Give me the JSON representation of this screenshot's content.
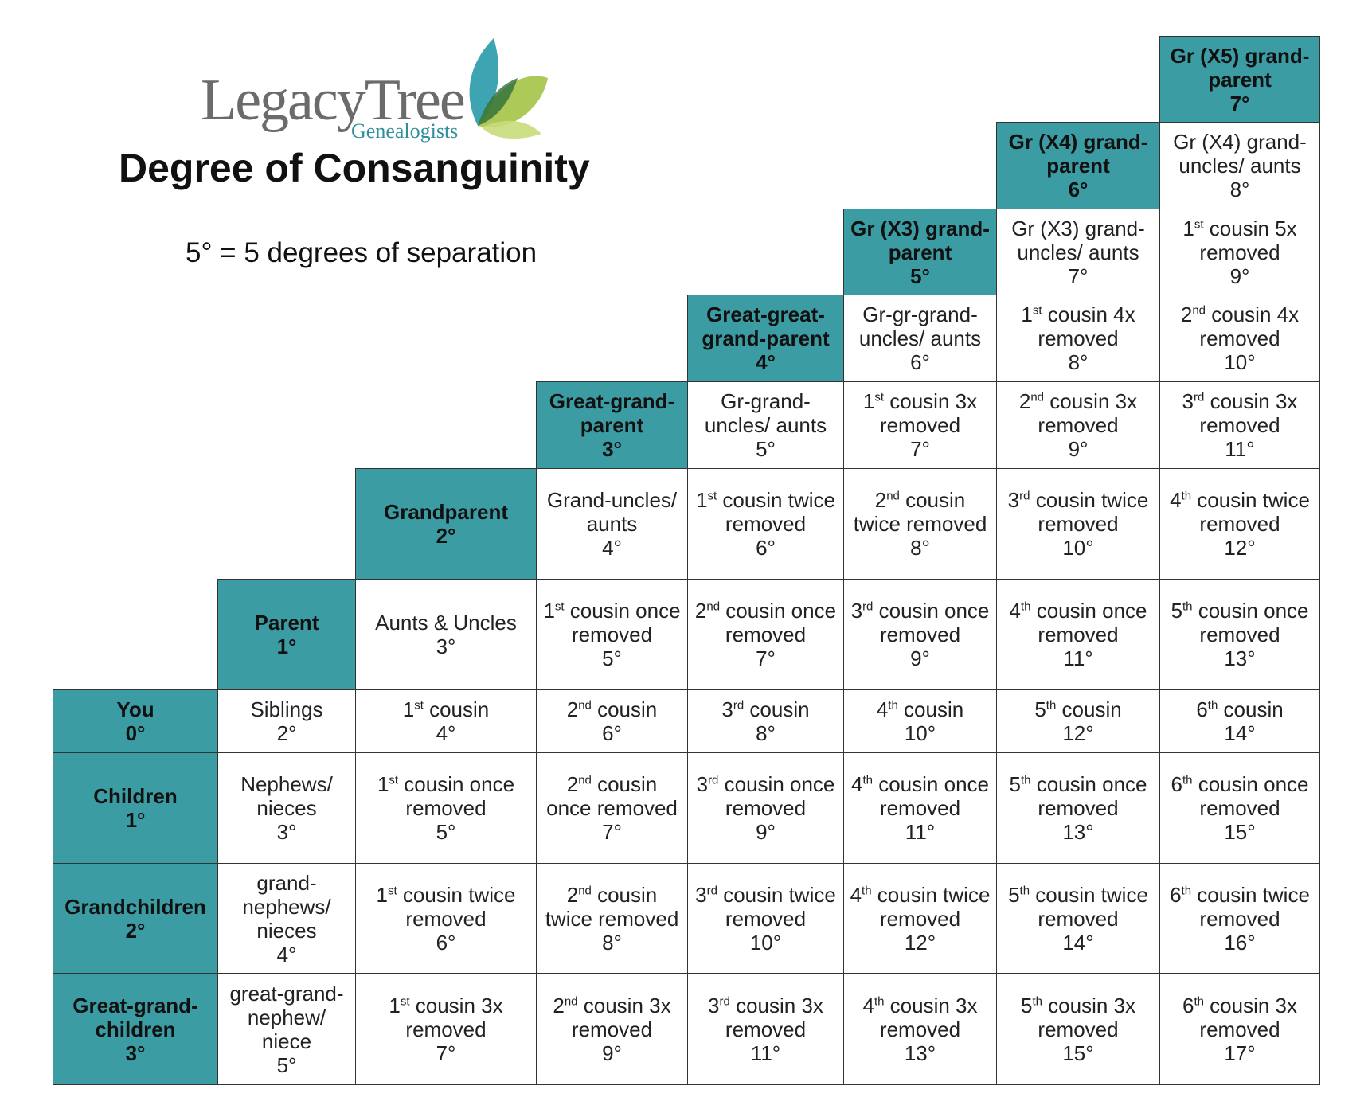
{
  "header": {
    "logo_name": "LegacyTree",
    "logo_tagline": "Genealogists",
    "title": "Degree of Consanguinity",
    "subtitle": "5° = 5 degrees of separation"
  },
  "table": {
    "rows": [
      [
        {
          "label": "Gr (X5) grand-parent",
          "degree": "7°"
        }
      ],
      [
        {
          "label": "Gr (X4) grand-parent",
          "degree": "6°"
        },
        {
          "label": "Gr (X4) grand-uncles/ aunts",
          "degree": "8°"
        }
      ],
      [
        {
          "label": "Gr (X3) grand-parent",
          "degree": "5°"
        },
        {
          "label": "Gr (X3) grand-uncles/ aunts",
          "degree": "7°"
        },
        {
          "ordinal": "1",
          "suffix": "st",
          "label": " cousin 5x removed",
          "degree": "9°"
        }
      ],
      [
        {
          "label": "Great-great-grand-parent",
          "degree": "4°"
        },
        {
          "label": "Gr-gr-grand-uncles/ aunts",
          "degree": "6°"
        },
        {
          "ordinal": "1",
          "suffix": "st",
          "label": " cousin 4x removed",
          "degree": "8°"
        },
        {
          "ordinal": "2",
          "suffix": "nd",
          "label": " cousin 4x removed",
          "degree": "10°"
        }
      ],
      [
        {
          "label": "Great-grand-parent",
          "degree": "3°"
        },
        {
          "label": "Gr-grand-uncles/ aunts",
          "degree": "5°"
        },
        {
          "ordinal": "1",
          "suffix": "st",
          "label": " cousin 3x removed",
          "degree": "7°"
        },
        {
          "ordinal": "2",
          "suffix": "nd",
          "label": " cousin 3x removed",
          "degree": "9°"
        },
        {
          "ordinal": "3",
          "suffix": "rd",
          "label": " cousin 3x removed",
          "degree": "11°"
        }
      ],
      [
        {
          "label": "Grandparent",
          "degree": "2°"
        },
        {
          "label": "Grand-uncles/ aunts",
          "degree": "4°"
        },
        {
          "ordinal": "1",
          "suffix": "st",
          "label": " cousin twice removed",
          "degree": "6°"
        },
        {
          "ordinal": "2",
          "suffix": "nd",
          "label": " cousin twice removed",
          "degree": "8°"
        },
        {
          "ordinal": "3",
          "suffix": "rd",
          "label": " cousin twice removed",
          "degree": "10°"
        },
        {
          "ordinal": "4",
          "suffix": "th",
          "label": " cousin twice removed",
          "degree": "12°"
        }
      ],
      [
        {
          "label": "Parent",
          "degree": "1°"
        },
        {
          "label": "Aunts & Uncles",
          "degree": "3°"
        },
        {
          "ordinal": "1",
          "suffix": "st",
          "label": " cousin once removed",
          "degree": "5°"
        },
        {
          "ordinal": "2",
          "suffix": "nd",
          "label": " cousin once removed",
          "degree": "7°"
        },
        {
          "ordinal": "3",
          "suffix": "rd",
          "label": " cousin once removed",
          "degree": "9°"
        },
        {
          "ordinal": "4",
          "suffix": "th",
          "label": " cousin once removed",
          "degree": "11°"
        },
        {
          "ordinal": "5",
          "suffix": "th",
          "label": " cousin once removed",
          "degree": "13°"
        }
      ],
      [
        {
          "label": "You",
          "degree": "0°"
        },
        {
          "label": "Siblings",
          "degree": "2°"
        },
        {
          "ordinal": "1",
          "suffix": "st",
          "label": " cousin",
          "degree": "4°"
        },
        {
          "ordinal": "2",
          "suffix": "nd",
          "label": " cousin",
          "degree": "6°"
        },
        {
          "ordinal": "3",
          "suffix": "rd",
          "label": " cousin",
          "degree": "8°"
        },
        {
          "ordinal": "4",
          "suffix": "th",
          "label": " cousin",
          "degree": "10°"
        },
        {
          "ordinal": "5",
          "suffix": "th",
          "label": " cousin",
          "degree": "12°"
        },
        {
          "ordinal": "6",
          "suffix": "th",
          "label": " cousin",
          "degree": "14°"
        }
      ],
      [
        {
          "label": "Children",
          "degree": "1°"
        },
        {
          "label": "Nephews/ nieces",
          "degree": "3°"
        },
        {
          "ordinal": "1",
          "suffix": "st",
          "label": " cousin once removed",
          "degree": "5°"
        },
        {
          "ordinal": "2",
          "suffix": "nd",
          "label": " cousin once removed",
          "degree": "7°"
        },
        {
          "ordinal": "3",
          "suffix": "rd",
          "label": " cousin once removed",
          "degree": "9°"
        },
        {
          "ordinal": "4",
          "suffix": "th",
          "label": " cousin once removed",
          "degree": "11°"
        },
        {
          "ordinal": "5",
          "suffix": "th",
          "label": " cousin once removed",
          "degree": "13°"
        },
        {
          "ordinal": "6",
          "suffix": "th",
          "label": " cousin once removed",
          "degree": "15°"
        }
      ],
      [
        {
          "label": "Grandchildren",
          "degree": "2°"
        },
        {
          "label": "grand-nephews/ nieces",
          "degree": "4°"
        },
        {
          "ordinal": "1",
          "suffix": "st",
          "label": " cousin twice removed",
          "degree": "6°"
        },
        {
          "ordinal": "2",
          "suffix": "nd",
          "label": " cousin twice removed",
          "degree": "8°"
        },
        {
          "ordinal": "3",
          "suffix": "rd",
          "label": " cousin twice removed",
          "degree": "10°"
        },
        {
          "ordinal": "4",
          "suffix": "th",
          "label": " cousin twice removed",
          "degree": "12°"
        },
        {
          "ordinal": "5",
          "suffix": "th",
          "label": " cousin twice removed",
          "degree": "14°"
        },
        {
          "ordinal": "6",
          "suffix": "th",
          "label": " cousin twice removed",
          "degree": "16°"
        }
      ],
      [
        {
          "label": "Great-grand-children",
          "degree": "3°"
        },
        {
          "label": "great-grand-nephew/ niece",
          "degree": "5°"
        },
        {
          "ordinal": "1",
          "suffix": "st",
          "label": " cousin 3x removed",
          "degree": "7°"
        },
        {
          "ordinal": "2",
          "suffix": "nd",
          "label": " cousin 3x removed",
          "degree": "9°"
        },
        {
          "ordinal": "3",
          "suffix": "rd",
          "label": " cousin 3x removed",
          "degree": "11°"
        },
        {
          "ordinal": "4",
          "suffix": "th",
          "label": " cousin 3x removed",
          "degree": "13°"
        },
        {
          "ordinal": "5",
          "suffix": "th",
          "label": " cousin 3x removed",
          "degree": "15°"
        },
        {
          "ordinal": "6",
          "suffix": "th",
          "label": " cousin 3x removed",
          "degree": "17°"
        }
      ]
    ]
  }
}
